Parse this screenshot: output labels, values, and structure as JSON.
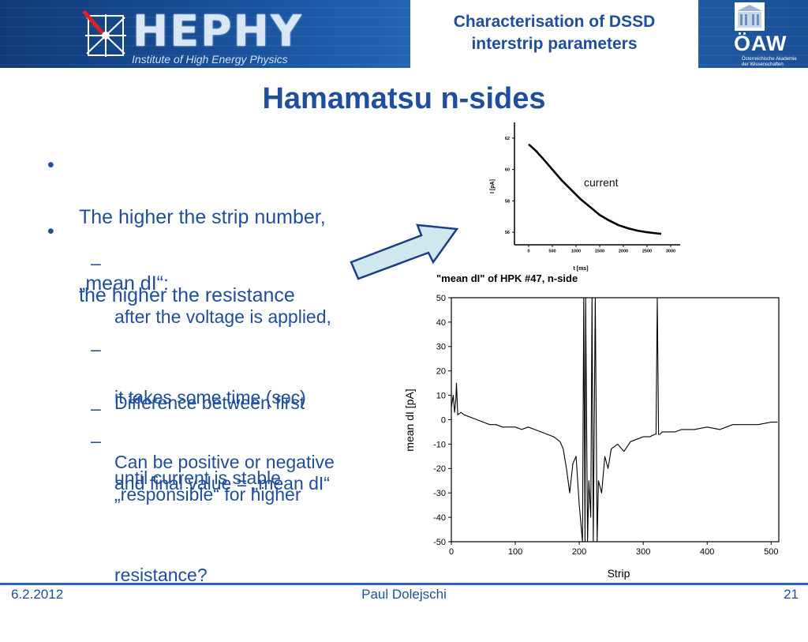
{
  "header": {
    "logo_text": "HEPHY",
    "logo_subtitle": "Institute of High Energy Physics",
    "title_line1": "Characterisation of DSSD",
    "title_line2": "interstrip parameters",
    "oaw_text": "ÖAW",
    "oaw_subtitle_line1": "Österreichische Akademie",
    "oaw_subtitle_line2": "der Wissenschaften"
  },
  "slide": {
    "title": "Hamamatsu n-sides",
    "bullets": [
      {
        "mark": "•",
        "lines": [
          "The higher the strip number,",
          "the higher the resistance"
        ]
      },
      {
        "mark": "•",
        "lines": [
          "„mean dI“:"
        ]
      }
    ],
    "subbullets": [
      {
        "mark": "–",
        "lines": [
          "after the voltage is applied,",
          "it takes some time (sec)",
          "until current is stable"
        ]
      },
      {
        "mark": "–",
        "lines": [
          "Difference between first",
          "and final value = „mean dI“"
        ]
      },
      {
        "mark": "–",
        "lines": [
          "Can be positive or negative"
        ]
      },
      {
        "mark": "–",
        "lines": [
          "„responsible“ for higher",
          "resistance?"
        ]
      }
    ]
  },
  "chart_data": [
    {
      "type": "line",
      "title": "",
      "xlabel": "t [ms]",
      "ylabel": "I [pA]",
      "xlim": [
        -300,
        3200
      ],
      "ylim": [
        55.2,
        63
      ],
      "xticks": [
        0,
        500,
        1000,
        1500,
        2000,
        2500,
        3000
      ],
      "yticks": [
        56,
        58,
        60,
        62
      ],
      "annotation": "current",
      "series": [
        {
          "name": "current",
          "x": [
            0,
            150,
            300,
            500,
            700,
            900,
            1100,
            1300,
            1500,
            1700,
            1900,
            2100,
            2300,
            2500,
            2700,
            2800
          ],
          "y": [
            61.6,
            61.2,
            60.7,
            60.0,
            59.3,
            58.7,
            58.1,
            57.6,
            57.1,
            56.75,
            56.45,
            56.25,
            56.1,
            56.0,
            55.93,
            55.9
          ]
        }
      ]
    },
    {
      "type": "line",
      "title": "\"mean dI\" of HPK #47, n-side",
      "xlabel": "Strip",
      "ylabel": "mean dI [pA]",
      "xlim": [
        0,
        512
      ],
      "ylim": [
        -50,
        50
      ],
      "xticks": [
        0,
        100,
        200,
        300,
        400,
        500
      ],
      "yticks": [
        50,
        40,
        30,
        20,
        10,
        0,
        -10,
        -20,
        -30,
        -40,
        -50
      ],
      "series": [
        {
          "name": "",
          "x": [
            0,
            3,
            5,
            7,
            8,
            10,
            15,
            20,
            30,
            40,
            50,
            60,
            70,
            80,
            90,
            100,
            110,
            120,
            130,
            140,
            150,
            160,
            170,
            175,
            180,
            185,
            190,
            195,
            200,
            205,
            207,
            209,
            210,
            213,
            215,
            218,
            220,
            222,
            225,
            228,
            230,
            235,
            240,
            245,
            250,
            260,
            270,
            280,
            290,
            300,
            310,
            318,
            320,
            322,
            324,
            326,
            330,
            340,
            350,
            360,
            380,
            400,
            420,
            440,
            460,
            480,
            500,
            510
          ],
          "y": [
            5,
            10,
            3,
            8,
            15,
            2,
            3,
            2,
            1,
            0,
            -1,
            -2,
            -2,
            -3,
            -3,
            -3,
            -4,
            -3,
            -4,
            -5,
            -6,
            -7,
            -9,
            -12,
            -20,
            -30,
            -18,
            -15,
            -35,
            -50,
            50,
            -50,
            50,
            -50,
            -25,
            -40,
            50,
            -50,
            50,
            -50,
            -25,
            -30,
            -15,
            -20,
            -12,
            -10,
            -13,
            -9,
            -8,
            -7,
            -7,
            -6,
            -6,
            50,
            -6,
            -6,
            -5,
            -5,
            -5,
            -4,
            -4,
            -3,
            -4,
            -2,
            -2,
            -2,
            -1,
            -1
          ]
        }
      ]
    }
  ],
  "footer": {
    "date": "6.2.2012",
    "author": "Paul Dolejschi",
    "page": "21"
  }
}
